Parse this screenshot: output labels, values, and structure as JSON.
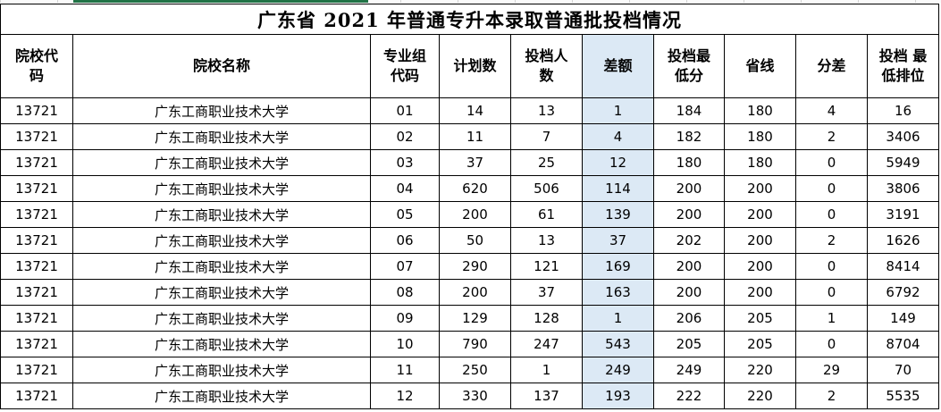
{
  "title": "广东省 2021 年普通专升本录取普通批投档情况",
  "headers": {
    "school_code": [
      "院校代",
      "码"
    ],
    "school_name": [
      "院校名称"
    ],
    "group_code": [
      "专业组",
      "代码"
    ],
    "plan": [
      "计划数"
    ],
    "filed": [
      "投档人",
      "数"
    ],
    "diff": [
      "差额"
    ],
    "min_score": [
      "投档最",
      "低分"
    ],
    "line": [
      "省线"
    ],
    "gap": [
      "分差"
    ],
    "rank": [
      "投档 最",
      "低排位"
    ]
  },
  "rows": [
    {
      "school_code": "13721",
      "school_name": "广东工商职业技术大学",
      "group_code": "01",
      "plan": "14",
      "filed": "13",
      "diff": "1",
      "min_score": "184",
      "line": "180",
      "gap": "4",
      "rank": "16"
    },
    {
      "school_code": "13721",
      "school_name": "广东工商职业技术大学",
      "group_code": "02",
      "plan": "11",
      "filed": "7",
      "diff": "4",
      "min_score": "182",
      "line": "180",
      "gap": "2",
      "rank": "3406"
    },
    {
      "school_code": "13721",
      "school_name": "广东工商职业技术大学",
      "group_code": "03",
      "plan": "37",
      "filed": "25",
      "diff": "12",
      "min_score": "180",
      "line": "180",
      "gap": "0",
      "rank": "5949"
    },
    {
      "school_code": "13721",
      "school_name": "广东工商职业技术大学",
      "group_code": "04",
      "plan": "620",
      "filed": "506",
      "diff": "114",
      "min_score": "200",
      "line": "200",
      "gap": "0",
      "rank": "3806"
    },
    {
      "school_code": "13721",
      "school_name": "广东工商职业技术大学",
      "group_code": "05",
      "plan": "200",
      "filed": "61",
      "diff": "139",
      "min_score": "200",
      "line": "200",
      "gap": "0",
      "rank": "3191"
    },
    {
      "school_code": "13721",
      "school_name": "广东工商职业技术大学",
      "group_code": "06",
      "plan": "50",
      "filed": "13",
      "diff": "37",
      "min_score": "202",
      "line": "200",
      "gap": "2",
      "rank": "1626"
    },
    {
      "school_code": "13721",
      "school_name": "广东工商职业技术大学",
      "group_code": "07",
      "plan": "290",
      "filed": "121",
      "diff": "169",
      "min_score": "200",
      "line": "200",
      "gap": "0",
      "rank": "8414"
    },
    {
      "school_code": "13721",
      "school_name": "广东工商职业技术大学",
      "group_code": "08",
      "plan": "200",
      "filed": "37",
      "diff": "163",
      "min_score": "200",
      "line": "200",
      "gap": "0",
      "rank": "6792"
    },
    {
      "school_code": "13721",
      "school_name": "广东工商职业技术大学",
      "group_code": "09",
      "plan": "129",
      "filed": "128",
      "diff": "1",
      "min_score": "206",
      "line": "205",
      "gap": "1",
      "rank": "149"
    },
    {
      "school_code": "13721",
      "school_name": "广东工商职业技术大学",
      "group_code": "10",
      "plan": "790",
      "filed": "247",
      "diff": "543",
      "min_score": "205",
      "line": "205",
      "gap": "0",
      "rank": "8704"
    },
    {
      "school_code": "13721",
      "school_name": "广东工商职业技术大学",
      "group_code": "11",
      "plan": "250",
      "filed": "1",
      "diff": "249",
      "min_score": "249",
      "line": "220",
      "gap": "29",
      "rank": "70"
    },
    {
      "school_code": "13721",
      "school_name": "广东工商职业技术大学",
      "group_code": "12",
      "plan": "330",
      "filed": "137",
      "diff": "193",
      "min_score": "222",
      "line": "220",
      "gap": "2",
      "rank": "5535"
    }
  ]
}
